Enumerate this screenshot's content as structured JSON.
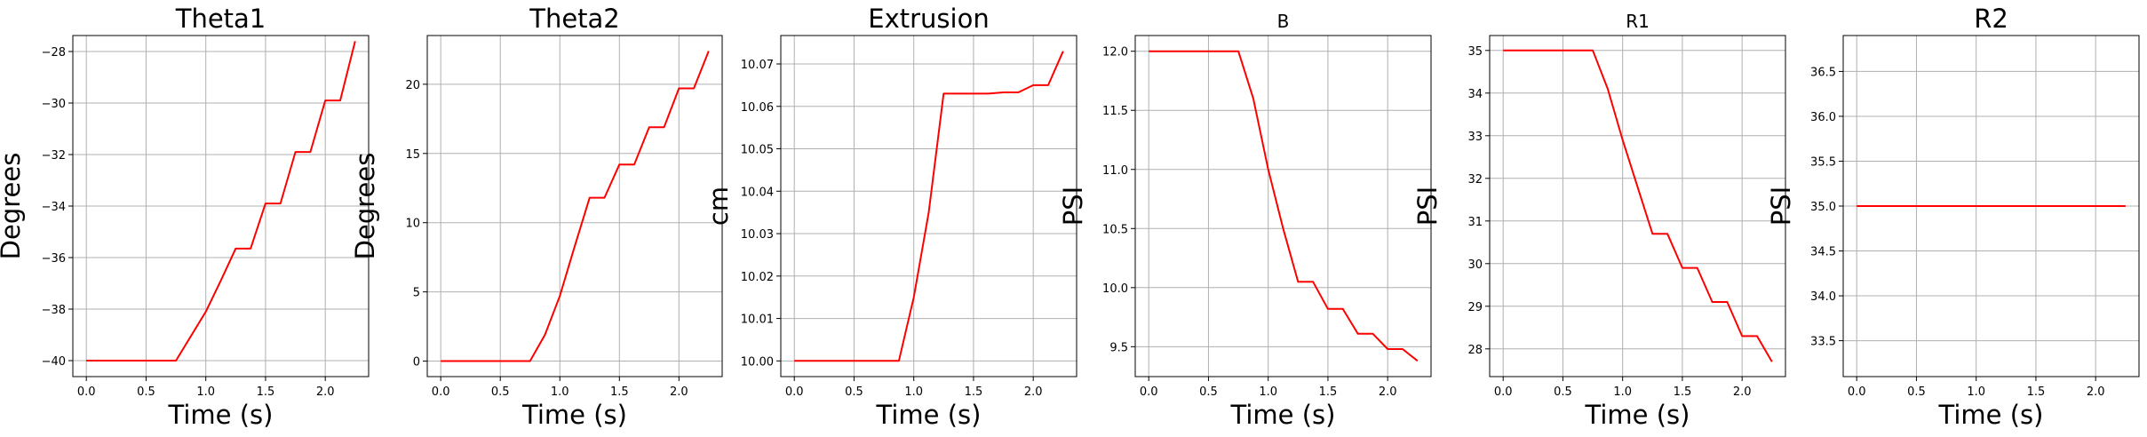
{
  "figure": {
    "colors": {
      "line": "#ff0000",
      "grid": "#b0b0b0",
      "axes": "#000000"
    }
  },
  "chart_data": [
    {
      "type": "line",
      "title": "Theta1",
      "xlabel": "Time (s)",
      "ylabel": "Degrees",
      "grid": true,
      "xlim": [
        -0.113,
        2.363
      ],
      "ylim": [
        -40.62,
        -27.38
      ],
      "xticks": [
        0.0,
        0.5,
        1.0,
        1.5,
        2.0
      ],
      "xtick_labels": [
        "0.0",
        "0.5",
        "1.0",
        "1.5",
        "2.0"
      ],
      "yticks": [
        -40,
        -38,
        -36,
        -34,
        -32,
        -30,
        -28
      ],
      "ytick_labels": [
        "−40",
        "−38",
        "−36",
        "−34",
        "−32",
        "−30",
        "−28"
      ],
      "series": [
        {
          "x": [
            0.0,
            0.75,
            1.0,
            1.125,
            1.25,
            1.375,
            1.5,
            1.625,
            1.75,
            1.875,
            2.0,
            2.125,
            2.25
          ],
          "values": [
            -40.0,
            -40.0,
            -38.1,
            -36.9,
            -35.65,
            -35.65,
            -33.9,
            -33.9,
            -31.9,
            -31.9,
            -29.9,
            -29.9,
            -27.6
          ]
        }
      ]
    },
    {
      "type": "line",
      "title": "Theta2",
      "xlabel": "Time (s)",
      "ylabel": "Degrees",
      "grid": true,
      "xlim": [
        -0.113,
        2.363
      ],
      "ylim": [
        -1.12,
        23.52
      ],
      "xticks": [
        0.0,
        0.5,
        1.0,
        1.5,
        2.0
      ],
      "xtick_labels": [
        "0.0",
        "0.5",
        "1.0",
        "1.5",
        "2.0"
      ],
      "yticks": [
        0,
        5,
        10,
        15,
        20
      ],
      "ytick_labels": [
        "0",
        "5",
        "10",
        "15",
        "20"
      ],
      "series": [
        {
          "x": [
            0.0,
            0.75,
            0.875,
            1.0,
            1.125,
            1.25,
            1.375,
            1.5,
            1.625,
            1.75,
            1.875,
            2.0,
            2.125,
            2.25
          ],
          "values": [
            0.0,
            0.0,
            1.9,
            4.7,
            8.3,
            11.8,
            11.8,
            14.2,
            14.2,
            16.9,
            16.9,
            19.7,
            19.7,
            22.4
          ]
        }
      ]
    },
    {
      "type": "line",
      "title": "Extrusion",
      "xlabel": "Time (s)",
      "ylabel": "cm",
      "grid": true,
      "xlim": [
        -0.113,
        2.363
      ],
      "ylim": [
        9.9963,
        10.0767
      ],
      "xticks": [
        0.0,
        0.5,
        1.0,
        1.5,
        2.0
      ],
      "xtick_labels": [
        "0.0",
        "0.5",
        "1.0",
        "1.5",
        "2.0"
      ],
      "yticks": [
        10.0,
        10.01,
        10.02,
        10.03,
        10.04,
        10.05,
        10.06,
        10.07
      ],
      "ytick_labels": [
        "10.00",
        "10.01",
        "10.02",
        "10.03",
        "10.04",
        "10.05",
        "10.06",
        "10.07"
      ],
      "series": [
        {
          "x": [
            0.0,
            0.875,
            1.0,
            1.125,
            1.25,
            1.375,
            1.5,
            1.625,
            1.75,
            1.875,
            2.0,
            2.125,
            2.25
          ],
          "values": [
            10.0,
            10.0,
            10.015,
            10.035,
            10.063,
            10.063,
            10.063,
            10.063,
            10.0633,
            10.0633,
            10.065,
            10.065,
            10.073
          ]
        }
      ]
    },
    {
      "type": "line",
      "title": "B",
      "xlabel": "Time (s)",
      "ylabel": "PSI",
      "grid": true,
      "xlim": [
        -0.113,
        2.363
      ],
      "ylim": [
        9.247,
        12.133
      ],
      "xticks": [
        0.0,
        0.5,
        1.0,
        1.5,
        2.0
      ],
      "xtick_labels": [
        "0.0",
        "0.5",
        "1.0",
        "1.5",
        "2.0"
      ],
      "yticks": [
        9.5,
        10.0,
        10.5,
        11.0,
        11.5,
        12.0
      ],
      "ytick_labels": [
        "9.5",
        "10.0",
        "10.5",
        "11.0",
        "11.5",
        "12.0"
      ],
      "series": [
        {
          "x": [
            0.0,
            0.75,
            0.875,
            1.0,
            1.125,
            1.25,
            1.375,
            1.5,
            1.625,
            1.75,
            1.875,
            2.0,
            2.125,
            2.25
          ],
          "values": [
            12.0,
            12.0,
            11.6,
            11.0,
            10.5,
            10.05,
            10.05,
            9.82,
            9.82,
            9.61,
            9.61,
            9.48,
            9.48,
            9.38
          ]
        }
      ]
    },
    {
      "type": "line",
      "title": "R1",
      "xlabel": "Time (s)",
      "ylabel": "PSI",
      "grid": true,
      "xlim": [
        -0.113,
        2.363
      ],
      "ylim": [
        27.35,
        35.35
      ],
      "xticks": [
        0.0,
        0.5,
        1.0,
        1.5,
        2.0
      ],
      "xtick_labels": [
        "0.0",
        "0.5",
        "1.0",
        "1.5",
        "2.0"
      ],
      "yticks": [
        28,
        29,
        30,
        31,
        32,
        33,
        34,
        35
      ],
      "ytick_labels": [
        "28",
        "29",
        "30",
        "31",
        "32",
        "33",
        "34",
        "35"
      ],
      "series": [
        {
          "x": [
            0.0,
            0.75,
            0.875,
            1.0,
            1.125,
            1.25,
            1.375,
            1.5,
            1.625,
            1.75,
            1.875,
            2.0,
            2.125,
            2.25
          ],
          "values": [
            35.0,
            35.0,
            34.1,
            32.9,
            31.8,
            30.7,
            30.7,
            29.9,
            29.9,
            29.1,
            29.1,
            28.3,
            28.3,
            27.7
          ]
        }
      ]
    },
    {
      "type": "line",
      "title": "R2",
      "xlabel": "Time (s)",
      "ylabel": "PSI",
      "grid": true,
      "xlim": [
        -0.113,
        2.363
      ],
      "ylim": [
        33.1,
        36.9
      ],
      "xticks": [
        0.0,
        0.5,
        1.0,
        1.5,
        2.0
      ],
      "xtick_labels": [
        "0.0",
        "0.5",
        "1.0",
        "1.5",
        "2.0"
      ],
      "yticks": [
        33.5,
        34.0,
        34.5,
        35.0,
        35.5,
        36.0,
        36.5
      ],
      "ytick_labels": [
        "33.5",
        "34.0",
        "34.5",
        "35.0",
        "35.5",
        "36.0",
        "36.5"
      ],
      "series": [
        {
          "x": [
            0.0,
            2.25
          ],
          "values": [
            35.0,
            35.0
          ]
        }
      ]
    }
  ]
}
